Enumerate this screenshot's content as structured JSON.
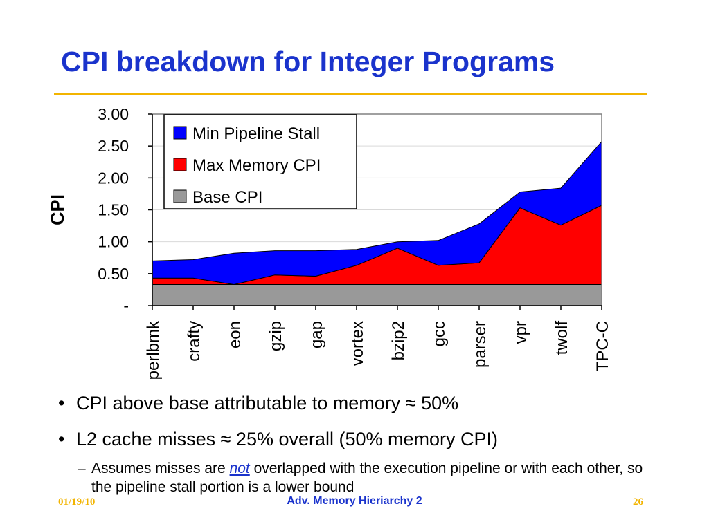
{
  "slide": {
    "title": "CPI breakdown for Integer Programs",
    "bullets": [
      {
        "text_before": "CPI above base attributable to memory ",
        "symbol": "≈",
        "text_after": " 50%"
      },
      {
        "text_before": "L2 cache misses ",
        "symbol": "≈",
        "text_after": "  25% overall (50% memory CPI)"
      }
    ],
    "sub_bullet": {
      "dash": "–",
      "before": "Assumes misses are ",
      "emphasis": "not",
      "after": " overlapped with the execution pipeline or with each other, so the pipeline stall portion is a lower bound"
    },
    "footer": {
      "date": "01/19/10",
      "center": "Adv. Memory Hieriarchy 2",
      "page": "26"
    }
  },
  "colors": {
    "title": "#1a33cc",
    "accent_rule": "#f2b400",
    "base": "#999999",
    "memory": "#ff0000",
    "pipeline": "#0000ff"
  },
  "chart_data": {
    "type": "area",
    "stacked": true,
    "ylabel": "CPI",
    "xlabel": "",
    "ylim": [
      0,
      3
    ],
    "yticks": [
      0,
      0.5,
      1,
      1.5,
      2,
      2.5,
      3
    ],
    "ytick_labels": [
      "-",
      "0.50",
      "1.00",
      "1.50",
      "2.00",
      "2.50",
      "3.00"
    ],
    "grid": true,
    "legend_position": "top-left",
    "categories": [
      "perlbmk",
      "crafty",
      "eon",
      "gzip",
      "gap",
      "vortex",
      "bzip2",
      "gcc",
      "parser",
      "vpr",
      "twolf",
      "TPC-C"
    ],
    "series": [
      {
        "name": "Base CPI",
        "color": "#999999",
        "values": [
          0.33,
          0.33,
          0.33,
          0.33,
          0.33,
          0.33,
          0.33,
          0.33,
          0.33,
          0.33,
          0.33,
          0.33
        ]
      },
      {
        "name": "Max Memory CPI",
        "color": "#ff0000",
        "values": [
          0.1,
          0.1,
          0.0,
          0.15,
          0.13,
          0.3,
          0.57,
          0.3,
          0.34,
          1.2,
          0.93,
          1.24
        ]
      },
      {
        "name": "Min Pipeline Stall",
        "color": "#0000ff",
        "values": [
          0.27,
          0.29,
          0.49,
          0.38,
          0.4,
          0.25,
          0.1,
          0.39,
          0.61,
          0.25,
          0.58,
          1.0
        ]
      }
    ],
    "legend_order": [
      "Min Pipeline Stall",
      "Max Memory CPI",
      "Base CPI"
    ]
  }
}
